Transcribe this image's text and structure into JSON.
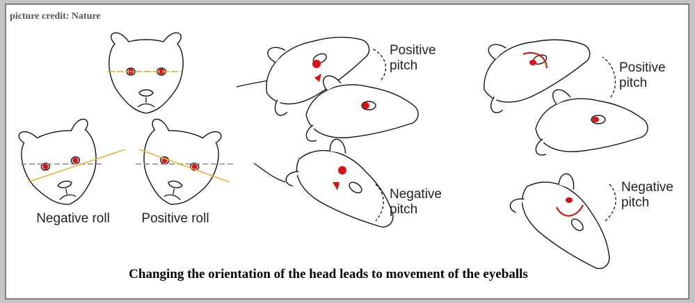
{
  "credit": "picture credit: Nature",
  "roll": {
    "labels": [
      "Negative roll",
      "Positive roll"
    ]
  },
  "pitch_panels": [
    {
      "top": [
        "Positive",
        "pitch"
      ],
      "bottom": [
        "Negative",
        "pitch"
      ]
    },
    {
      "top": [
        "Positive",
        "pitch"
      ],
      "bottom": [
        "Negative",
        "pitch"
      ]
    }
  ],
  "caption": "Changing the orientation of the head leads to movement of the eyeballs"
}
